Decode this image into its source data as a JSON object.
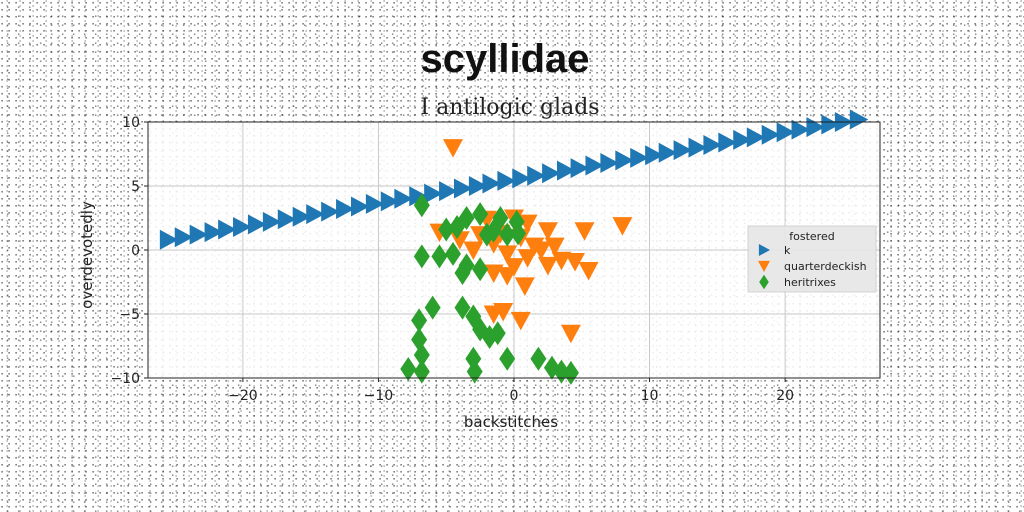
{
  "chart_data": {
    "type": "scatter",
    "title": "scyllidae",
    "subtitle": "I antilogic glads",
    "xlabel": "backstitches",
    "ylabel": "overdevotedly",
    "xlim": [
      -27,
      27
    ],
    "ylim": [
      -10,
      10
    ],
    "xticks": [
      -20,
      -10,
      0,
      10,
      20
    ],
    "yticks": [
      -10,
      -5,
      0,
      5,
      10
    ],
    "grid": true,
    "legend": {
      "title": "fostered",
      "placement": "center-right"
    },
    "series": [
      {
        "name": "k",
        "color": "#1f77b4",
        "marker": "triangle-right",
        "points": [
          [
            -25.5,
            0.8
          ],
          [
            -24.4,
            1.0
          ],
          [
            -23.3,
            1.2
          ],
          [
            -22.2,
            1.4
          ],
          [
            -21.2,
            1.6
          ],
          [
            -20.1,
            1.8
          ],
          [
            -19.0,
            2.0
          ],
          [
            -17.9,
            2.2
          ],
          [
            -16.8,
            2.4
          ],
          [
            -15.7,
            2.6
          ],
          [
            -14.7,
            2.8
          ],
          [
            -13.6,
            3.0
          ],
          [
            -12.5,
            3.2
          ],
          [
            -11.4,
            3.4
          ],
          [
            -10.3,
            3.6
          ],
          [
            -9.2,
            3.8
          ],
          [
            -8.2,
            4.0
          ],
          [
            -7.1,
            4.2
          ],
          [
            -6.0,
            4.4
          ],
          [
            -4.9,
            4.6
          ],
          [
            -3.8,
            4.8
          ],
          [
            -2.7,
            5.0
          ],
          [
            -1.7,
            5.2
          ],
          [
            -0.6,
            5.4
          ],
          [
            0.5,
            5.6
          ],
          [
            1.6,
            5.8
          ],
          [
            2.7,
            6.0
          ],
          [
            3.8,
            6.2
          ],
          [
            4.8,
            6.4
          ],
          [
            5.9,
            6.6
          ],
          [
            7.0,
            6.8
          ],
          [
            8.1,
            7.0
          ],
          [
            9.2,
            7.2
          ],
          [
            10.3,
            7.4
          ],
          [
            11.3,
            7.6
          ],
          [
            12.4,
            7.8
          ],
          [
            13.5,
            8.0
          ],
          [
            14.6,
            8.2
          ],
          [
            15.7,
            8.4
          ],
          [
            16.8,
            8.6
          ],
          [
            17.8,
            8.8
          ],
          [
            18.9,
            9.0
          ],
          [
            20.0,
            9.2
          ],
          [
            21.1,
            9.4
          ],
          [
            22.2,
            9.6
          ],
          [
            23.3,
            9.8
          ],
          [
            24.3,
            10.0
          ],
          [
            25.4,
            10.2
          ]
        ]
      },
      {
        "name": "quarterdeckish",
        "color": "#ff7f0e",
        "marker": "triangle-down",
        "points": [
          [
            -4.5,
            8.0
          ],
          [
            -2,
            2.4
          ],
          [
            0,
            2.5
          ],
          [
            1,
            2.1
          ],
          [
            2.5,
            1.5
          ],
          [
            5.2,
            1.5
          ],
          [
            8,
            1.9
          ],
          [
            -5.5,
            1.4
          ],
          [
            -2.5,
            1.2
          ],
          [
            -1,
            1.3
          ],
          [
            0.5,
            1.0
          ],
          [
            1.5,
            0.3
          ],
          [
            3,
            0.3
          ],
          [
            -4,
            0.8
          ],
          [
            -1.5,
            0.5
          ],
          [
            2,
            0
          ],
          [
            -3,
            0
          ],
          [
            -0.5,
            -0.3
          ],
          [
            1,
            -0.6
          ],
          [
            2.5,
            -1.2
          ],
          [
            3.5,
            -0.8
          ],
          [
            4.5,
            -0.9
          ],
          [
            5.5,
            -1.6
          ],
          [
            0,
            -1.3
          ],
          [
            -1.5,
            -1.8
          ],
          [
            -0.5,
            -2.0
          ],
          [
            0.8,
            -2.8
          ],
          [
            -1.5,
            -5.0
          ],
          [
            -0.8,
            -4.8
          ],
          [
            0.5,
            -5.5
          ],
          [
            4.2,
            -6.5
          ]
        ]
      },
      {
        "name": "heritrixes",
        "color": "#2ca02c",
        "marker": "diamond",
        "points": [
          [
            -6.8,
            3.5
          ],
          [
            -3.5,
            2.5
          ],
          [
            -2.5,
            2.8
          ],
          [
            -1.0,
            2.5
          ],
          [
            0.2,
            2.2
          ],
          [
            -5.0,
            1.6
          ],
          [
            -4.2,
            1.8
          ],
          [
            -2.0,
            1.2
          ],
          [
            -1.5,
            1.5
          ],
          [
            -0.5,
            1.2
          ],
          [
            0.3,
            1.3
          ],
          [
            -6.8,
            -0.5
          ],
          [
            -5.5,
            -0.5
          ],
          [
            -4.5,
            -0.3
          ],
          [
            -3.5,
            -1.2
          ],
          [
            -2.5,
            -1.5
          ],
          [
            -3.8,
            -1.8
          ],
          [
            -6.0,
            -4.5
          ],
          [
            -7.0,
            -5.5
          ],
          [
            -3.8,
            -4.5
          ],
          [
            -3.0,
            -5.2
          ],
          [
            -2.5,
            -6.2
          ],
          [
            -1.8,
            -6.8
          ],
          [
            -1.2,
            -6.5
          ],
          [
            -7.0,
            -7.0
          ],
          [
            -6.8,
            -8.2
          ],
          [
            -0.5,
            -8.5
          ],
          [
            -3.0,
            -8.5
          ],
          [
            1.8,
            -8.5
          ],
          [
            2.8,
            -9.2
          ],
          [
            -7.8,
            -9.3
          ],
          [
            -6.8,
            -9.5
          ],
          [
            -2.9,
            -9.5
          ],
          [
            3.5,
            -9.5
          ],
          [
            4.2,
            -9.6
          ]
        ]
      }
    ]
  }
}
